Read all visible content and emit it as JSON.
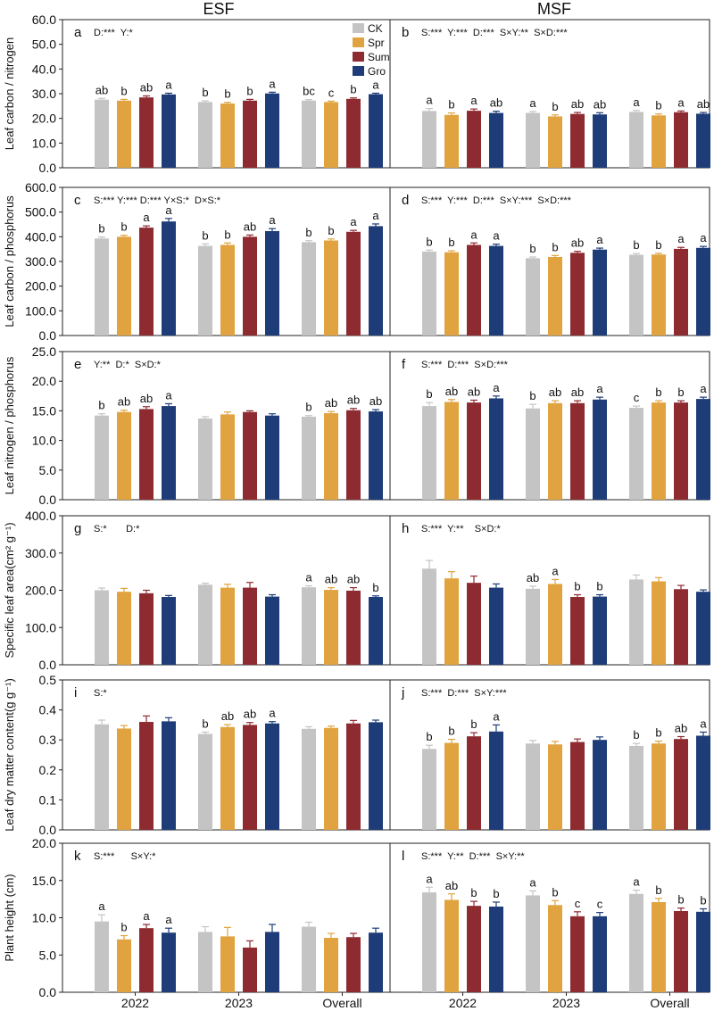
{
  "figure": {
    "column_titles": [
      "ESF",
      "MSF"
    ],
    "groups": [
      "2022",
      "2023",
      "Overall"
    ],
    "legend": [
      {
        "label": "CK",
        "color": "#c4c4c4"
      },
      {
        "label": "Spr",
        "color": "#e0a33f"
      },
      {
        "label": "Sum",
        "color": "#8e2b31"
      },
      {
        "label": "Gro",
        "color": "#1d3c78"
      }
    ]
  },
  "chart_data": [
    {
      "type": "bar",
      "panel": "a",
      "stats": "D:***  Y:*",
      "ylabel": "Leaf carbon / nitrogen",
      "ylim": [
        0,
        60
      ],
      "yticks": [
        "0.0",
        "10.0",
        "20.0",
        "30.0",
        "40.0",
        "50.0",
        "60.0"
      ],
      "categories": [
        "2022",
        "2023",
        "Overall"
      ],
      "series": [
        {
          "name": "CK",
          "values": [
            27.6,
            26.6,
            27.2
          ],
          "err": [
            0.5,
            0.5,
            0.4
          ],
          "letters": [
            "ab",
            "b",
            "bc"
          ]
        },
        {
          "name": "Spr",
          "values": [
            27.2,
            26.0,
            26.6
          ],
          "err": [
            0.5,
            0.5,
            0.4
          ],
          "letters": [
            "b",
            "b",
            "c"
          ]
        },
        {
          "name": "Sum",
          "values": [
            28.5,
            27.2,
            27.9
          ],
          "err": [
            0.6,
            0.5,
            0.4
          ],
          "letters": [
            "ab",
            "b",
            "b"
          ]
        },
        {
          "name": "Gro",
          "values": [
            29.7,
            30.1,
            29.8
          ],
          "err": [
            0.5,
            0.5,
            0.4
          ],
          "letters": [
            "a",
            "a",
            "a"
          ]
        }
      ]
    },
    {
      "type": "bar",
      "panel": "b",
      "stats": "S:***  Y:***  D:***  S×Y:**  S×D:***",
      "ylabel": "",
      "ylim": [
        0,
        60
      ],
      "yticks": [],
      "categories": [
        "2022",
        "2023",
        "Overall"
      ],
      "series": [
        {
          "name": "CK",
          "values": [
            23.0,
            22.2,
            22.6
          ],
          "err": [
            1.0,
            0.6,
            0.6
          ],
          "letters": [
            "a",
            "a",
            "a"
          ]
        },
        {
          "name": "Spr",
          "values": [
            21.4,
            20.8,
            21.2
          ],
          "err": [
            0.8,
            0.6,
            0.6
          ],
          "letters": [
            "b",
            "b",
            "b"
          ]
        },
        {
          "name": "Sum",
          "values": [
            23.1,
            21.8,
            22.5
          ],
          "err": [
            0.7,
            0.6,
            0.5
          ],
          "letters": [
            "a",
            "ab",
            "a"
          ]
        },
        {
          "name": "Gro",
          "values": [
            22.2,
            21.6,
            21.9
          ],
          "err": [
            0.7,
            0.7,
            0.5
          ],
          "letters": [
            "ab",
            "ab",
            "ab"
          ]
        }
      ]
    },
    {
      "type": "bar",
      "panel": "c",
      "stats": "S:*** Y:*** D:*** Y×S:*  D×S:*",
      "ylabel": "Leaf carbon / phosphorus",
      "ylim": [
        0,
        600
      ],
      "yticks": [
        "0.0",
        "100.0",
        "200.0",
        "300.0",
        "400.0",
        "500.0",
        "600.0"
      ],
      "categories": [
        "2022",
        "2023",
        "Overall"
      ],
      "series": [
        {
          "name": "CK",
          "values": [
            393,
            363,
            378
          ],
          "err": [
            6,
            8,
            6
          ],
          "letters": [
            "b",
            "b",
            "b"
          ]
        },
        {
          "name": "Spr",
          "values": [
            400,
            367,
            385
          ],
          "err": [
            6,
            8,
            6
          ],
          "letters": [
            "b",
            "b",
            "b"
          ]
        },
        {
          "name": "Sum",
          "values": [
            437,
            400,
            420
          ],
          "err": [
            7,
            7,
            6
          ],
          "letters": [
            "a",
            "ab",
            "a"
          ]
        },
        {
          "name": "Gro",
          "values": [
            462,
            423,
            443
          ],
          "err": [
            12,
            10,
            9
          ],
          "letters": [
            "a",
            "a",
            "a"
          ]
        }
      ]
    },
    {
      "type": "bar",
      "panel": "d",
      "stats": "S:***  Y:***  D:***  S×Y:***  S×D:***",
      "ylabel": "",
      "ylim": [
        0,
        600
      ],
      "yticks": [],
      "categories": [
        "2022",
        "2023",
        "Overall"
      ],
      "series": [
        {
          "name": "CK",
          "values": [
            340,
            313,
            327
          ],
          "err": [
            6,
            5,
            5
          ],
          "letters": [
            "b",
            "b",
            "b"
          ]
        },
        {
          "name": "Spr",
          "values": [
            337,
            318,
            328
          ],
          "err": [
            6,
            6,
            5
          ],
          "letters": [
            "b",
            "b",
            "b"
          ]
        },
        {
          "name": "Sum",
          "values": [
            367,
            335,
            351
          ],
          "err": [
            8,
            6,
            6
          ],
          "letters": [
            "a",
            "ab",
            "a"
          ]
        },
        {
          "name": "Gro",
          "values": [
            363,
            348,
            355
          ],
          "err": [
            7,
            6,
            6
          ],
          "letters": [
            "a",
            "a",
            "a"
          ]
        }
      ]
    },
    {
      "type": "bar",
      "panel": "e",
      "stats": "Y:**  D:*  S×D:*",
      "ylabel": "Leaf nitrogen / phosphorus",
      "ylim": [
        0,
        25
      ],
      "yticks": [
        "0.0",
        "5.0",
        "10.0",
        "15.0",
        "20.0",
        "25.0"
      ],
      "categories": [
        "2022",
        "2023",
        "Overall"
      ],
      "series": [
        {
          "name": "CK",
          "values": [
            14.2,
            13.7,
            14.0
          ],
          "err": [
            0.3,
            0.3,
            0.2
          ],
          "letters": [
            "b",
            "",
            "b"
          ]
        },
        {
          "name": "Spr",
          "values": [
            14.8,
            14.4,
            14.6
          ],
          "err": [
            0.3,
            0.4,
            0.3
          ],
          "letters": [
            "ab",
            "",
            "ab"
          ]
        },
        {
          "name": "Sum",
          "values": [
            15.3,
            14.8,
            15.1
          ],
          "err": [
            0.4,
            0.2,
            0.3
          ],
          "letters": [
            "ab",
            "",
            "ab"
          ]
        },
        {
          "name": "Gro",
          "values": [
            15.8,
            14.2,
            14.9
          ],
          "err": [
            0.4,
            0.3,
            0.3
          ],
          "letters": [
            "a",
            "",
            "ab"
          ]
        }
      ]
    },
    {
      "type": "bar",
      "panel": "f",
      "stats": "S:***  D:***  S×D:***",
      "ylabel": "",
      "ylim": [
        0,
        25
      ],
      "yticks": [],
      "categories": [
        "2022",
        "2023",
        "Overall"
      ],
      "series": [
        {
          "name": "CK",
          "values": [
            15.8,
            15.4,
            15.5
          ],
          "err": [
            0.6,
            0.7,
            0.3
          ],
          "letters": [
            "b",
            "b",
            "c"
          ]
        },
        {
          "name": "Spr",
          "values": [
            16.5,
            16.3,
            16.4
          ],
          "err": [
            0.4,
            0.4,
            0.3
          ],
          "letters": [
            "ab",
            "ab",
            "b"
          ]
        },
        {
          "name": "Sum",
          "values": [
            16.4,
            16.3,
            16.4
          ],
          "err": [
            0.4,
            0.4,
            0.3
          ],
          "letters": [
            "ab",
            "ab",
            "b"
          ]
        },
        {
          "name": "Gro",
          "values": [
            17.1,
            16.9,
            17.0
          ],
          "err": [
            0.4,
            0.4,
            0.3
          ],
          "letters": [
            "a",
            "a",
            "a"
          ]
        }
      ]
    },
    {
      "type": "bar",
      "panel": "g",
      "stats": "S:*       D:*",
      "ylabel": "Specific leaf area(cm² g⁻¹)",
      "ylim": [
        0,
        400
      ],
      "yticks": [
        "0.0",
        "100.0",
        "200.0",
        "300.0",
        "400.0"
      ],
      "categories": [
        "2022",
        "2023",
        "Overall"
      ],
      "series": [
        {
          "name": "CK",
          "values": [
            200,
            215,
            208
          ],
          "err": [
            6,
            4,
            4
          ],
          "letters": [
            "",
            "",
            "a"
          ]
        },
        {
          "name": "Spr",
          "values": [
            196,
            207,
            201
          ],
          "err": [
            9,
            9,
            6
          ],
          "letters": [
            "",
            "",
            "ab"
          ]
        },
        {
          "name": "Sum",
          "values": [
            192,
            207,
            199
          ],
          "err": [
            8,
            14,
            8
          ],
          "letters": [
            "",
            "",
            "ab"
          ]
        },
        {
          "name": "Gro",
          "values": [
            182,
            183,
            182
          ],
          "err": [
            4,
            5,
            3
          ],
          "letters": [
            "",
            "",
            "b"
          ]
        }
      ]
    },
    {
      "type": "bar",
      "panel": "h",
      "stats": "S:***  Y:**    S×D:*",
      "ylabel": "",
      "ylim": [
        0,
        400
      ],
      "yticks": [],
      "categories": [
        "2022",
        "2023",
        "Overall"
      ],
      "series": [
        {
          "name": "CK",
          "values": [
            258,
            204,
            229
          ],
          "err": [
            22,
            7,
            12
          ],
          "letters": [
            "",
            "ab",
            ""
          ]
        },
        {
          "name": "Spr",
          "values": [
            232,
            217,
            224
          ],
          "err": [
            18,
            12,
            10
          ],
          "letters": [
            "",
            "a",
            ""
          ]
        },
        {
          "name": "Sum",
          "values": [
            220,
            182,
            203
          ],
          "err": [
            18,
            6,
            10
          ],
          "letters": [
            "",
            "b",
            ""
          ]
        },
        {
          "name": "Gro",
          "values": [
            207,
            183,
            196
          ],
          "err": [
            10,
            5,
            5
          ],
          "letters": [
            "",
            "b",
            ""
          ]
        }
      ]
    },
    {
      "type": "bar",
      "panel": "i",
      "stats": "S:*",
      "ylabel": "Leaf dry matter content(g g⁻¹)",
      "ylim": [
        0,
        0.5
      ],
      "yticks": [
        "0.0",
        "0.1",
        "0.2",
        "0.3",
        "0.4",
        "0.5"
      ],
      "categories": [
        "2022",
        "2023",
        "Overall"
      ],
      "series": [
        {
          "name": "CK",
          "values": [
            0.352,
            0.32,
            0.337
          ],
          "err": [
            0.014,
            0.006,
            0.007
          ],
          "letters": [
            "",
            "b",
            ""
          ]
        },
        {
          "name": "Spr",
          "values": [
            0.338,
            0.343,
            0.34
          ],
          "err": [
            0.01,
            0.008,
            0.006
          ],
          "letters": [
            "",
            "ab",
            ""
          ]
        },
        {
          "name": "Sum",
          "values": [
            0.36,
            0.35,
            0.355
          ],
          "err": [
            0.02,
            0.008,
            0.01
          ],
          "letters": [
            "",
            "ab",
            ""
          ]
        },
        {
          "name": "Gro",
          "values": [
            0.362,
            0.355,
            0.359
          ],
          "err": [
            0.012,
            0.006,
            0.007
          ],
          "letters": [
            "",
            "a",
            ""
          ]
        }
      ]
    },
    {
      "type": "bar",
      "panel": "j",
      "stats": "S:***  D:***  S×Y:***",
      "ylabel": "",
      "ylim": [
        0,
        0.5
      ],
      "yticks": [],
      "categories": [
        "2022",
        "2023",
        "Overall"
      ],
      "series": [
        {
          "name": "CK",
          "values": [
            0.27,
            0.288,
            0.28
          ],
          "err": [
            0.012,
            0.01,
            0.008
          ],
          "letters": [
            "b",
            "",
            "b"
          ]
        },
        {
          "name": "Spr",
          "values": [
            0.29,
            0.285,
            0.288
          ],
          "err": [
            0.012,
            0.01,
            0.008
          ],
          "letters": [
            "b",
            "",
            "b"
          ]
        },
        {
          "name": "Sum",
          "values": [
            0.312,
            0.293,
            0.303
          ],
          "err": [
            0.012,
            0.01,
            0.008
          ],
          "letters": [
            "b",
            "",
            "ab"
          ]
        },
        {
          "name": "Gro",
          "values": [
            0.328,
            0.3,
            0.314
          ],
          "err": [
            0.022,
            0.01,
            0.012
          ],
          "letters": [
            "a",
            "",
            "a"
          ]
        }
      ]
    },
    {
      "type": "bar",
      "panel": "k",
      "stats": "S:***      S×Y:*",
      "ylabel": "Plant height (cm)",
      "ylim": [
        0,
        20
      ],
      "yticks": [
        "0.0",
        "5.0",
        "10.0",
        "15.0",
        "20.0"
      ],
      "categories": [
        "2022",
        "2023",
        "Overall"
      ],
      "series": [
        {
          "name": "CK",
          "values": [
            9.5,
            8.1,
            8.8
          ],
          "err": [
            0.9,
            0.7,
            0.6
          ],
          "letters": [
            "a",
            "",
            ""
          ]
        },
        {
          "name": "Spr",
          "values": [
            7.1,
            7.5,
            7.3
          ],
          "err": [
            0.5,
            1.2,
            0.6
          ],
          "letters": [
            "b",
            "",
            ""
          ]
        },
        {
          "name": "Sum",
          "values": [
            8.6,
            6.0,
            7.4
          ],
          "err": [
            0.5,
            0.9,
            0.5
          ],
          "letters": [
            "a",
            "",
            ""
          ]
        },
        {
          "name": "Gro",
          "values": [
            8.0,
            8.1,
            8.0
          ],
          "err": [
            0.6,
            1.0,
            0.6
          ],
          "letters": [
            "a",
            "",
            ""
          ]
        }
      ]
    },
    {
      "type": "bar",
      "panel": "l",
      "stats": "S:***  Y:**  D:***  S×Y:**",
      "ylabel": "",
      "ylim": [
        0,
        20
      ],
      "yticks": [],
      "categories": [
        "2022",
        "2023",
        "Overall"
      ],
      "series": [
        {
          "name": "CK",
          "values": [
            13.4,
            13.0,
            13.2
          ],
          "err": [
            0.7,
            0.6,
            0.5
          ],
          "letters": [
            "a",
            "a",
            "a"
          ]
        },
        {
          "name": "Spr",
          "values": [
            12.4,
            11.7,
            12.1
          ],
          "err": [
            0.8,
            0.6,
            0.5
          ],
          "letters": [
            "ab",
            "b",
            "b"
          ]
        },
        {
          "name": "Sum",
          "values": [
            11.6,
            10.2,
            10.9
          ],
          "err": [
            0.6,
            0.6,
            0.4
          ],
          "letters": [
            "b",
            "c",
            "b"
          ]
        },
        {
          "name": "Gro",
          "values": [
            11.5,
            10.2,
            10.8
          ],
          "err": [
            0.6,
            0.5,
            0.4
          ],
          "letters": [
            "b",
            "c",
            "b"
          ]
        }
      ]
    }
  ]
}
